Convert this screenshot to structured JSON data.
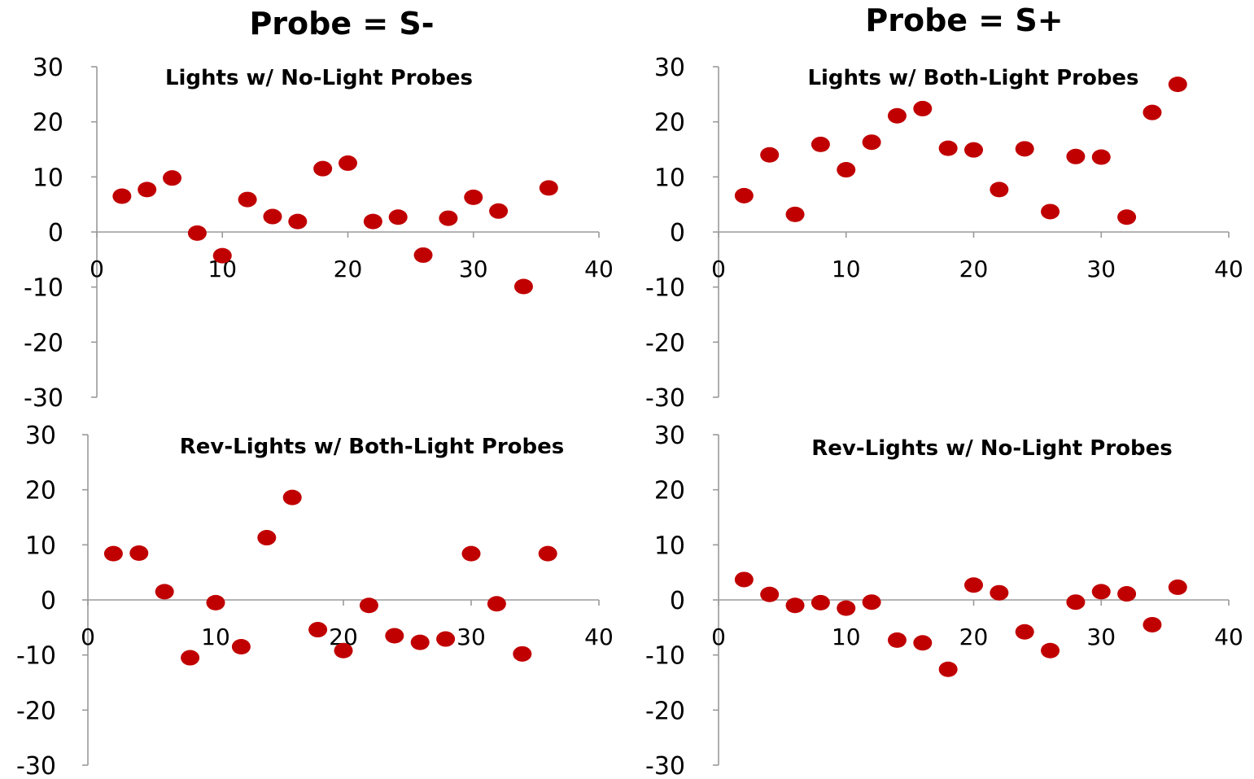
{
  "column_titles": [
    "Probe = S-",
    "Probe = S+"
  ],
  "chart_data": [
    {
      "type": "scatter",
      "title": "Lights w/ No-Light Probes",
      "xlim": [
        0,
        40
      ],
      "ylim": [
        -30,
        30
      ],
      "xticks": [
        "0",
        "10",
        "20",
        "30",
        "40"
      ],
      "yticks": [
        "30",
        "20",
        "10",
        "0",
        "-10",
        "-20",
        "-30"
      ],
      "color": "#c00000",
      "x": [
        2,
        4,
        6,
        8,
        10,
        12,
        14,
        16,
        18,
        20,
        22,
        24,
        26,
        28,
        30,
        32,
        34,
        36
      ],
      "y": [
        6.5,
        7.7,
        9.8,
        -0.2,
        -4.3,
        5.9,
        2.8,
        1.9,
        11.5,
        12.5,
        1.9,
        2.7,
        -4.2,
        2.5,
        6.3,
        3.8,
        -9.9,
        8
      ]
    },
    {
      "type": "scatter",
      "title": "Lights w/ Both-Light Probes",
      "xlim": [
        0,
        40
      ],
      "ylim": [
        -30,
        30
      ],
      "xticks": [
        "0",
        "10",
        "20",
        "30",
        "40"
      ],
      "yticks": [
        "30",
        "20",
        "10",
        "0",
        "-10",
        "-20",
        "-30"
      ],
      "color": "#c00000",
      "x": [
        2,
        4,
        6,
        8,
        10,
        12,
        14,
        16,
        18,
        20,
        22,
        24,
        26,
        28,
        30,
        32,
        34,
        36
      ],
      "y": [
        6.6,
        14,
        3.2,
        15.9,
        11.3,
        16.3,
        21.1,
        22.4,
        15.2,
        14.9,
        7.7,
        15.1,
        3.7,
        13.7,
        13.6,
        2.7,
        21.7,
        26.8
      ]
    },
    {
      "type": "scatter",
      "title": "Rev-Lights w/ Both-Light Probes",
      "xlim": [
        0,
        40
      ],
      "ylim": [
        -30,
        30
      ],
      "xticks": [
        "0",
        "10",
        "20",
        "30",
        "40"
      ],
      "yticks": [
        "30",
        "20",
        "10",
        "0",
        "-10",
        "-20",
        "-30"
      ],
      "color": "#c00000",
      "x": [
        2,
        4,
        6,
        8,
        10,
        12,
        14,
        16,
        18,
        20,
        22,
        24,
        26,
        28,
        30,
        32,
        34,
        36
      ],
      "y": [
        8.4,
        8.5,
        1.5,
        -10.5,
        -0.5,
        -8.5,
        11.3,
        18.6,
        -5.4,
        -9.2,
        -1,
        -6.5,
        -7.7,
        -7.1,
        8.4,
        -0.7,
        -9.8,
        8.4
      ]
    },
    {
      "type": "scatter",
      "title": "Rev-Lights w/ No-Light Probes",
      "xlim": [
        0,
        40
      ],
      "ylim": [
        -30,
        30
      ],
      "xticks": [
        "0",
        "10",
        "20",
        "30",
        "40"
      ],
      "yticks": [
        "30",
        "20",
        "10",
        "0",
        "-10",
        "-20",
        "-30"
      ],
      "color": "#c00000",
      "x": [
        2,
        4,
        6,
        8,
        10,
        12,
        14,
        16,
        18,
        20,
        22,
        24,
        26,
        28,
        30,
        32,
        34,
        36
      ],
      "y": [
        3.7,
        1,
        -1,
        -0.5,
        -1.5,
        -0.4,
        -7.3,
        -7.8,
        -12.6,
        2.7,
        1.3,
        -5.8,
        -9.2,
        -0.4,
        1.5,
        1.1,
        -4.5,
        2.3
      ]
    }
  ]
}
